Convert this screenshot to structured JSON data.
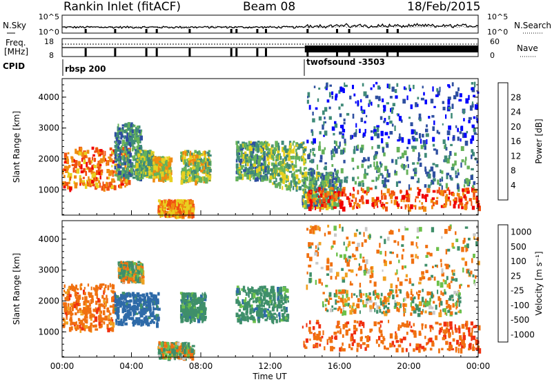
{
  "header": {
    "station": "Rankin Inlet (fitACF)",
    "beam": "Beam 08",
    "date": "18/Feb/2015"
  },
  "panels": {
    "nsky_label": "N.Sky",
    "nsearch_label": "N.Search",
    "freq_label_1": "Freq.",
    "freq_label_2": "[MHz]",
    "nave_label": "Nave",
    "cpid_label": "CPID",
    "nsky_ticks": [
      "10^5",
      "10^0"
    ],
    "nsearch_ticks": [
      "10^5",
      "10^0"
    ],
    "freq_ticks": [
      "18",
      "8"
    ],
    "nave_ticks": [
      "60",
      "0"
    ],
    "cpid_segments": [
      {
        "name": "rbsp 200",
        "start_hour": 0,
        "end_hour": 14
      },
      {
        "name": "twofsound -3503",
        "start_hour": 14,
        "end_hour": 24
      }
    ]
  },
  "time_axis": {
    "label": "Time UT",
    "ticks": [
      "00:00",
      "04:00",
      "08:00",
      "12:00",
      "16:00",
      "20:00",
      "00:00"
    ],
    "tick_hours": [
      0,
      4,
      8,
      12,
      16,
      20,
      24
    ]
  },
  "colors": {
    "power_scale": [
      "#0000ff",
      "#2e4fa0",
      "#3f8a78",
      "#66b25a",
      "#e8d020",
      "#f08a10",
      "#f05010",
      "#f00000"
    ],
    "velocity_scale": [
      "#1a3fb0",
      "#2e6aa8",
      "#3f8f6a",
      "#6cc04a",
      "#c8c8c8",
      "#f0a020",
      "#f07010",
      "#f03010",
      "#e80000"
    ]
  },
  "chart_data": [
    {
      "type": "heatmap",
      "title": "",
      "xlabel": "Time UT",
      "ylabel": "Slant Range [km]",
      "xlim": [
        0,
        24
      ],
      "ylim": [
        180,
        4600
      ],
      "yticks": [
        1000,
        2000,
        3000,
        4000
      ],
      "colorbar": {
        "label": "Power [dB]",
        "ticks": [
          4,
          8,
          12,
          16,
          20,
          24,
          28
        ],
        "range": [
          0,
          32
        ]
      },
      "regions": [
        {
          "t0": 0.0,
          "t1": 3.8,
          "r0": 1100,
          "r1": 2400,
          "level": 24
        },
        {
          "t0": 3.0,
          "t1": 4.5,
          "r0": 1400,
          "r1": 3200,
          "level": 10
        },
        {
          "t0": 4.2,
          "t1": 5.2,
          "r0": 1500,
          "r1": 2300,
          "level": 14
        },
        {
          "t0": 5.2,
          "t1": 6.2,
          "r0": 1400,
          "r1": 2100,
          "level": 18
        },
        {
          "t0": 6.8,
          "t1": 8.5,
          "r0": 1300,
          "r1": 2300,
          "level": 16
        },
        {
          "t0": 5.5,
          "t1": 7.5,
          "r0": 200,
          "r1": 700,
          "level": 22
        },
        {
          "t0": 10.0,
          "t1": 11.8,
          "r0": 1400,
          "r1": 2600,
          "level": 12
        },
        {
          "t0": 11.8,
          "t1": 14.0,
          "r0": 1100,
          "r1": 2600,
          "level": 14
        },
        {
          "t0": 13.8,
          "t1": 16.0,
          "r0": 500,
          "r1": 1600,
          "level": 12
        },
        {
          "t0": 14.0,
          "t1": 24.0,
          "r0": 450,
          "r1": 1100,
          "level": 26
        },
        {
          "t0": 14.0,
          "t1": 24.0,
          "r0": 1100,
          "r1": 2600,
          "level": 10
        },
        {
          "t0": 14.0,
          "t1": 24.0,
          "r0": 2600,
          "r1": 4500,
          "level": 6
        }
      ]
    },
    {
      "type": "heatmap",
      "title": "",
      "xlabel": "Time UT",
      "ylabel": "Slant Range [km]",
      "xlim": [
        0,
        24
      ],
      "ylim": [
        180,
        4600
      ],
      "yticks": [
        1000,
        2000,
        3000,
        4000
      ],
      "colorbar": {
        "label": "Velocity [m s⁻¹]",
        "ticks": [
          1000,
          500,
          100,
          25,
          -25,
          -100,
          -500,
          -1000
        ]
      },
      "regions": [
        {
          "t0": 0.0,
          "t1": 3.0,
          "r0": 1100,
          "r1": 2600,
          "value": -300
        },
        {
          "t0": 3.0,
          "t1": 5.5,
          "r0": 1300,
          "r1": 2300,
          "value": 700
        },
        {
          "t0": 3.2,
          "t1": 4.6,
          "r0": 2700,
          "r1": 3300,
          "value": 60
        },
        {
          "t0": 6.8,
          "t1": 8.2,
          "r0": 1400,
          "r1": 2300,
          "value": 300
        },
        {
          "t0": 5.5,
          "t1": 7.5,
          "r0": 200,
          "r1": 700,
          "value": 60
        },
        {
          "t0": 10.0,
          "t1": 13.0,
          "r0": 1400,
          "r1": 2500,
          "value": 300
        },
        {
          "t0": 13.8,
          "t1": 24.0,
          "r0": 450,
          "r1": 1400,
          "value": -400
        },
        {
          "t0": 15.0,
          "t1": 23.0,
          "r0": 1600,
          "r1": 2400,
          "value": 0
        },
        {
          "t0": 14.0,
          "t1": 24.0,
          "r0": 2500,
          "r1": 4500,
          "value": -80
        }
      ]
    }
  ]
}
